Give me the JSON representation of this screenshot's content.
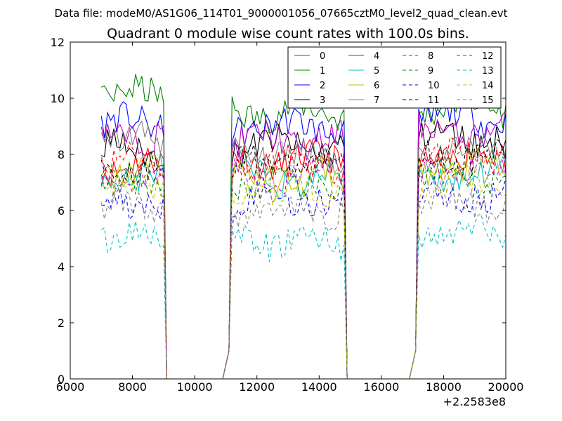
{
  "chart_data": {
    "type": "line",
    "suptitle": "Data file: modeM0/AS1G06_114T01_9000001056_07665cztM0_level2_quad_clean.evt",
    "title": "Quadrant 0 module wise count rates with 100.0s bins.",
    "xlabel": "",
    "ylabel": "",
    "offset_label": "+2.2583e8",
    "xlim": [
      6000,
      20000
    ],
    "ylim": [
      0,
      12
    ],
    "xticks": [
      6000,
      8000,
      10000,
      12000,
      14000,
      16000,
      18000,
      20000
    ],
    "yticks": [
      0,
      2,
      4,
      6,
      8,
      10,
      12
    ],
    "grid": false,
    "legend_position": "top-right",
    "legend_columns": 4,
    "segments": [
      [
        7000,
        9000
      ],
      [
        11200,
        14800
      ],
      [
        17200,
        20000
      ]
    ],
    "series": [
      {
        "name": "0",
        "color": "#ff0000",
        "dash": "solid",
        "levels": [
          7.6,
          7.8,
          7.9
        ]
      },
      {
        "name": "1",
        "color": "#008000",
        "dash": "solid",
        "levels": [
          10.1,
          9.5,
          9.7
        ]
      },
      {
        "name": "2",
        "color": "#0000ff",
        "dash": "solid",
        "levels": [
          9.1,
          9.0,
          9.3
        ]
      },
      {
        "name": "3",
        "color": "#000000",
        "dash": "solid",
        "levels": [
          8.2,
          8.3,
          8.6
        ]
      },
      {
        "name": "4",
        "color": "#bf00bf",
        "dash": "solid",
        "levels": [
          8.7,
          8.5,
          8.8
        ]
      },
      {
        "name": "5",
        "color": "#00bfbf",
        "dash": "solid",
        "levels": [
          7.3,
          7.1,
          7.3
        ]
      },
      {
        "name": "6",
        "color": "#bfbf00",
        "dash": "solid",
        "levels": [
          7.4,
          7.2,
          7.5
        ]
      },
      {
        "name": "7",
        "color": "#808080",
        "dash": "solid",
        "levels": [
          8.5,
          8.0,
          8.1
        ]
      },
      {
        "name": "8",
        "color": "#ff0000",
        "dash": "dashed",
        "levels": [
          7.8,
          7.7,
          8.0
        ]
      },
      {
        "name": "9",
        "color": "#008000",
        "dash": "dashed",
        "levels": [
          7.0,
          6.9,
          7.1
        ]
      },
      {
        "name": "10",
        "color": "#0000ff",
        "dash": "dashed",
        "levels": [
          6.3,
          6.4,
          6.5
        ]
      },
      {
        "name": "11",
        "color": "#000000",
        "dash": "dashed",
        "levels": [
          7.6,
          7.7,
          7.9
        ]
      },
      {
        "name": "12",
        "color": "#bf00bf",
        "dash": "dashed",
        "levels": [
          7.2,
          7.3,
          7.4
        ]
      },
      {
        "name": "13",
        "color": "#00bfbf",
        "dash": "dashed",
        "levels": [
          5.1,
          4.9,
          5.2
        ]
      },
      {
        "name": "14",
        "color": "#bfbf00",
        "dash": "dashed",
        "levels": [
          6.9,
          6.7,
          7.0
        ]
      },
      {
        "name": "15",
        "color": "#808080",
        "dash": "dashed",
        "levels": [
          6.1,
          6.0,
          6.3
        ]
      }
    ]
  }
}
